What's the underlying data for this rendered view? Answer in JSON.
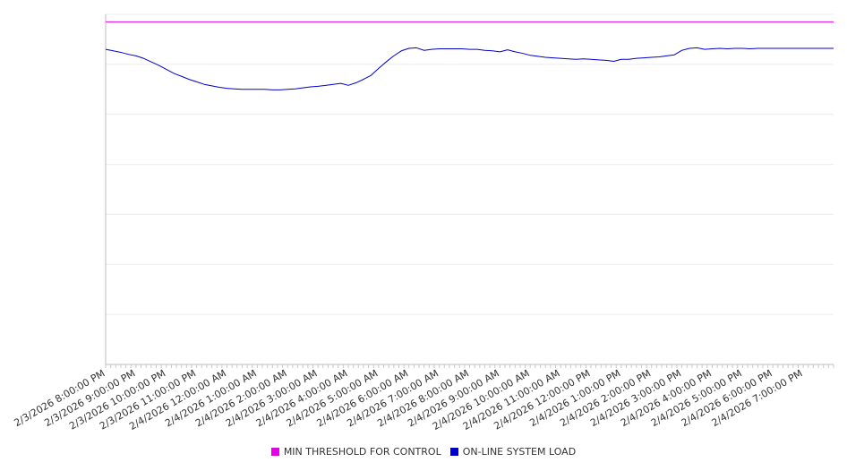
{
  "chart_data": {
    "type": "line",
    "xlabel": "",
    "ylabel": "",
    "y_tick_labels_visible": false,
    "grid": true,
    "legend_position": "bottom-center",
    "x_tick_labels": [
      "2/3/2026 8:00:00 PM",
      "2/3/2026 9:00:00 PM",
      "2/3/2026 10:00:00 PM",
      "2/3/2026 11:00:00 PM",
      "2/4/2026 12:00:00 AM",
      "2/4/2026 1:00:00 AM",
      "2/4/2026 2:00:00 AM",
      "2/4/2026 3:00:00 AM",
      "2/4/2026 4:00:00 AM",
      "2/4/2026 5:00:00 AM",
      "2/4/2026 6:00:00 AM",
      "2/4/2026 7:00:00 AM",
      "2/4/2026 8:00:00 AM",
      "2/4/2026 9:00:00 AM",
      "2/4/2026 10:00:00 AM",
      "2/4/2026 11:00:00 AM",
      "2/4/2026 12:00:00 PM",
      "2/4/2026 1:00:00 PM",
      "2/4/2026 2:00:00 PM",
      "2/4/2026 3:00:00 PM",
      "2/4/2026 4:00:00 PM",
      "2/4/2026 5:00:00 PM",
      "2/4/2026 6:00:00 PM",
      "2/4/2026 7:00:00 PM"
    ],
    "x_range_hours": [
      0,
      24
    ],
    "ylim": [
      0,
      7
    ],
    "series": [
      {
        "name": "MIN THRESHOLD FOR CONTROL",
        "color": "#e600e6",
        "x_hours": [
          0,
          24
        ],
        "values": [
          6.85,
          6.85
        ]
      },
      {
        "name": "ON-LINE SYSTEM LOAD",
        "color": "#0000cc",
        "x_hours": [
          0,
          0.25,
          0.5,
          0.75,
          1,
          1.25,
          1.5,
          1.75,
          2,
          2.25,
          2.5,
          2.75,
          3,
          3.25,
          3.5,
          3.75,
          4,
          4.25,
          4.5,
          4.75,
          5,
          5.25,
          5.5,
          5.75,
          6,
          6.25,
          6.5,
          6.75,
          7,
          7.25,
          7.5,
          7.75,
          8,
          8.25,
          8.5,
          8.75,
          9,
          9.25,
          9.5,
          9.75,
          10,
          10.25,
          10.5,
          10.75,
          11,
          11.25,
          11.5,
          11.75,
          12,
          12.25,
          12.5,
          12.75,
          13,
          13.25,
          13.5,
          13.75,
          14,
          14.25,
          14.5,
          14.75,
          15,
          15.25,
          15.5,
          15.75,
          16,
          16.25,
          16.5,
          16.75,
          17,
          17.25,
          17.5,
          17.75,
          18,
          18.25,
          18.5,
          18.75,
          19,
          19.25,
          19.5,
          19.75,
          20,
          20.25,
          20.5,
          20.75,
          21,
          21.25,
          21.5,
          21.75,
          22,
          22.25,
          22.5,
          22.75,
          23,
          23.25,
          23.5,
          23.75,
          24
        ],
        "values": [
          6.3,
          6.27,
          6.24,
          6.2,
          6.17,
          6.12,
          6.05,
          5.98,
          5.9,
          5.82,
          5.76,
          5.7,
          5.65,
          5.6,
          5.57,
          5.54,
          5.52,
          5.51,
          5.5,
          5.5,
          5.5,
          5.5,
          5.49,
          5.49,
          5.5,
          5.51,
          5.53,
          5.55,
          5.56,
          5.58,
          5.6,
          5.62,
          5.58,
          5.63,
          5.7,
          5.78,
          5.92,
          6.05,
          6.17,
          6.27,
          6.32,
          6.33,
          6.28,
          6.3,
          6.31,
          6.31,
          6.31,
          6.31,
          6.3,
          6.3,
          6.28,
          6.27,
          6.25,
          6.29,
          6.25,
          6.22,
          6.18,
          6.16,
          6.14,
          6.13,
          6.12,
          6.11,
          6.1,
          6.11,
          6.1,
          6.09,
          6.08,
          6.06,
          6.1,
          6.1,
          6.12,
          6.13,
          6.14,
          6.15,
          6.17,
          6.19,
          6.28,
          6.32,
          6.33,
          6.3,
          6.31,
          6.32,
          6.31,
          6.32,
          6.32,
          6.31,
          6.32,
          6.32,
          6.32,
          6.32,
          6.32,
          6.32,
          6.32,
          6.32,
          6.32,
          6.32,
          6.32
        ]
      }
    ]
  }
}
